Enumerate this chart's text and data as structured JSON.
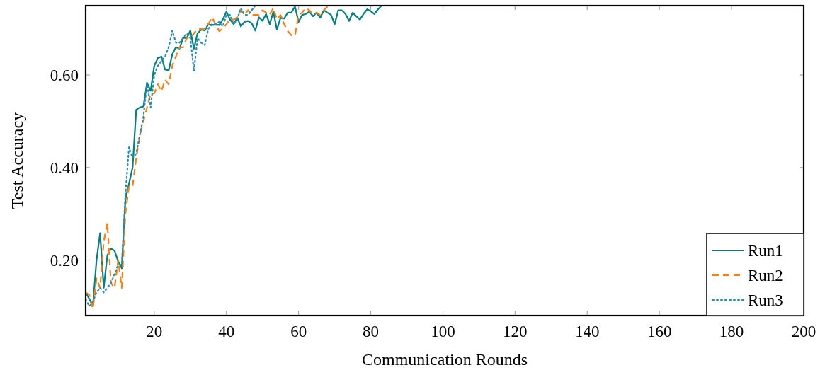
{
  "chart_data": {
    "type": "line",
    "xlabel": "Communication Rounds",
    "ylabel": "Test Accuracy",
    "xlim": [
      1,
      200
    ],
    "xticks": [
      20,
      40,
      60,
      80,
      100,
      120,
      140,
      160,
      180,
      200
    ],
    "ylim": [
      0.08,
      0.75
    ],
    "yticks": [
      {
        "value": 0.2,
        "label": "0.20"
      },
      {
        "value": 0.4,
        "label": "0.40"
      },
      {
        "value": 0.6,
        "label": "0.60"
      }
    ],
    "grid": false,
    "legend": "bottom right",
    "marker": "none",
    "series": [
      {
        "name": "Run1",
        "color": "#008080",
        "line_style": "solid",
        "x": [
          1,
          2,
          3,
          4,
          5,
          6,
          7,
          8,
          9,
          10,
          11,
          12,
          13,
          14,
          15,
          16,
          17,
          18,
          19,
          20,
          21,
          22,
          23,
          24,
          25,
          26,
          27,
          28,
          29,
          30,
          31,
          32,
          33,
          34,
          35,
          36,
          37,
          38,
          39,
          40,
          41,
          42,
          43,
          44,
          45,
          46,
          47,
          48,
          49,
          50,
          51,
          52,
          53,
          54,
          55,
          56,
          57,
          58,
          59,
          60,
          61,
          62,
          63,
          64,
          65,
          66,
          67,
          68,
          69,
          70,
          71,
          72,
          73,
          74,
          75,
          76,
          77,
          78,
          79,
          80,
          81,
          82,
          83
        ],
        "values": [
          0.13,
          0.116,
          0.1,
          0.2,
          0.258,
          0.14,
          0.21,
          0.225,
          0.22,
          0.197,
          0.182,
          0.33,
          0.365,
          0.4,
          0.525,
          0.53,
          0.532,
          0.583,
          0.566,
          0.62,
          0.637,
          0.64,
          0.612,
          0.61,
          0.645,
          0.66,
          0.657,
          0.68,
          0.68,
          0.696,
          0.657,
          0.69,
          0.698,
          0.696,
          0.71,
          0.708,
          0.709,
          0.708,
          0.72,
          0.737,
          0.72,
          0.71,
          0.724,
          0.705,
          0.715,
          0.717,
          0.712,
          0.696,
          0.725,
          0.717,
          0.732,
          0.71,
          0.737,
          0.698,
          0.724,
          0.722,
          0.735,
          0.735,
          0.748,
          0.715,
          0.73,
          0.732,
          0.737,
          0.727,
          0.735,
          0.724,
          0.74,
          0.735,
          0.73,
          0.71,
          0.74,
          0.74,
          0.732,
          0.717,
          0.735,
          0.727,
          0.72,
          0.732,
          0.742,
          0.738,
          0.732,
          0.742,
          0.75
        ]
      },
      {
        "name": "Run2",
        "color": "#ff7f0e",
        "line_style": "dashed",
        "x": [
          1,
          2,
          3,
          4,
          5,
          6,
          7,
          8,
          9,
          10,
          11,
          12,
          13,
          14,
          15,
          16,
          17,
          18,
          19,
          20,
          21,
          22,
          23,
          24,
          25,
          26,
          27,
          28,
          29,
          30,
          31,
          32,
          33,
          34,
          35,
          36,
          37,
          38,
          39,
          40,
          41,
          42,
          43,
          44,
          45,
          46,
          47,
          48,
          49,
          50,
          51,
          52,
          53,
          54,
          55,
          56,
          57,
          58,
          59,
          60,
          61,
          62,
          63,
          64,
          65,
          66,
          67,
          68
        ],
        "values": [
          0.13,
          0.125,
          0.095,
          0.16,
          0.14,
          0.24,
          0.28,
          0.15,
          0.14,
          0.2,
          0.14,
          0.3,
          0.36,
          0.36,
          0.42,
          0.47,
          0.5,
          0.53,
          0.56,
          0.56,
          0.58,
          0.565,
          0.59,
          0.58,
          0.62,
          0.64,
          0.66,
          0.66,
          0.68,
          0.68,
          0.69,
          0.7,
          0.7,
          0.7,
          0.71,
          0.725,
          0.71,
          0.695,
          0.7,
          0.71,
          0.72,
          0.72,
          0.725,
          0.74,
          0.73,
          0.74,
          0.73,
          0.73,
          0.73,
          0.74,
          0.735,
          0.73,
          0.745,
          0.72,
          0.73,
          0.71,
          0.695,
          0.686,
          0.685,
          0.73,
          0.735,
          0.745,
          0.74,
          0.73,
          0.735,
          0.73,
          0.74,
          0.748
        ]
      },
      {
        "name": "Run3",
        "color": "#2b8cae",
        "line_style": "dotted",
        "x": [
          1,
          2,
          3,
          4,
          5,
          6,
          7,
          8,
          9,
          10,
          11,
          12,
          13,
          14,
          15,
          16,
          17,
          18,
          19,
          20,
          21,
          22,
          23,
          24,
          25,
          26,
          27,
          28,
          29,
          30,
          31,
          32,
          33,
          34,
          35,
          36,
          37,
          38,
          39,
          40,
          41,
          42,
          43,
          44,
          45,
          46,
          47,
          48
        ],
        "values": [
          0.115,
          0.1,
          0.11,
          0.13,
          0.14,
          0.13,
          0.14,
          0.15,
          0.17,
          0.19,
          0.19,
          0.34,
          0.444,
          0.42,
          0.43,
          0.47,
          0.51,
          0.583,
          0.53,
          0.6,
          0.62,
          0.63,
          0.64,
          0.66,
          0.696,
          0.67,
          0.67,
          0.68,
          0.69,
          0.68,
          0.609,
          0.68,
          0.67,
          0.665,
          0.7,
          0.71,
          0.71,
          0.715,
          0.705,
          0.73,
          0.73,
          0.71,
          0.72,
          0.745,
          0.73,
          0.73,
          0.74,
          0.75
        ]
      }
    ]
  }
}
